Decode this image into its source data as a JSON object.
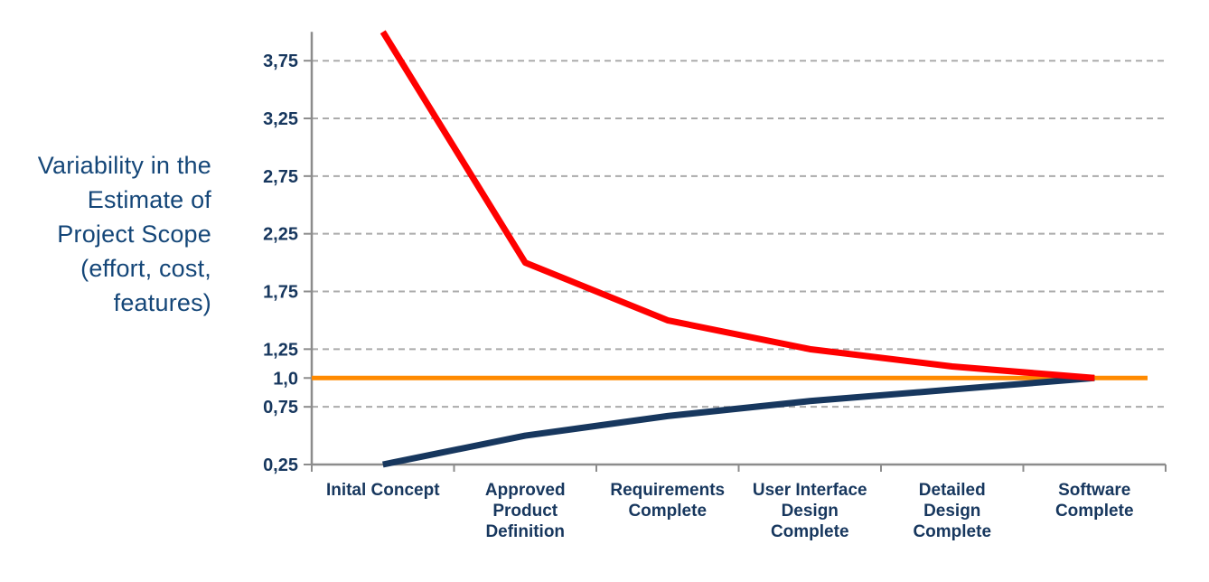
{
  "chart": {
    "y_axis_title": "Variability in the\nEstimate of\nProject Scope\n(effort, cost,\nfeatures)"
  },
  "chart_data": {
    "type": "line",
    "title": "",
    "ylabel": "Variability in the Estimate of Project Scope (effort, cost, features)",
    "xlabel": "",
    "categories": [
      "Inital Concept",
      "Approved\nProduct\nDefinition",
      "Requirements\nComplete",
      "User Interface\nDesign\nComplete",
      "Detailed\nDesign\nComplete",
      "Software\nComplete"
    ],
    "series": [
      {
        "name": "upper-estimate-bound",
        "color": "#FF0000",
        "values": [
          4.0,
          2.0,
          1.5,
          1.25,
          1.1,
          1.0
        ]
      },
      {
        "name": "lower-estimate-bound",
        "color": "#17375E",
        "values": [
          0.25,
          0.5,
          0.67,
          0.8,
          0.9,
          1.0
        ]
      }
    ],
    "baseline": {
      "name": "target-estimate",
      "value": 1.0,
      "color": "#FF8A00"
    },
    "ylim": [
      0.25,
      4.0
    ],
    "y_ticks": [
      {
        "value": 3.75,
        "label": "3,75"
      },
      {
        "value": 3.25,
        "label": "3,25"
      },
      {
        "value": 2.75,
        "label": "2,75"
      },
      {
        "value": 2.25,
        "label": "2,25"
      },
      {
        "value": 1.75,
        "label": "1,75"
      },
      {
        "value": 1.25,
        "label": "1,25"
      },
      {
        "value": 1.0,
        "label": "1,0"
      },
      {
        "value": 0.75,
        "label": "0,75"
      },
      {
        "value": 0.25,
        "label": "0,25"
      }
    ],
    "gridlines": [
      3.75,
      3.25,
      2.75,
      2.25,
      1.75,
      1.25,
      0.75
    ],
    "grid": "horizontal-dashed",
    "legend_position": "none",
    "colors": {
      "grid": "#ABABAB",
      "axis": "#8C8C8C",
      "tick_text": "#17375E",
      "category_text": "#17375E",
      "y_title_text": "#144678"
    }
  }
}
